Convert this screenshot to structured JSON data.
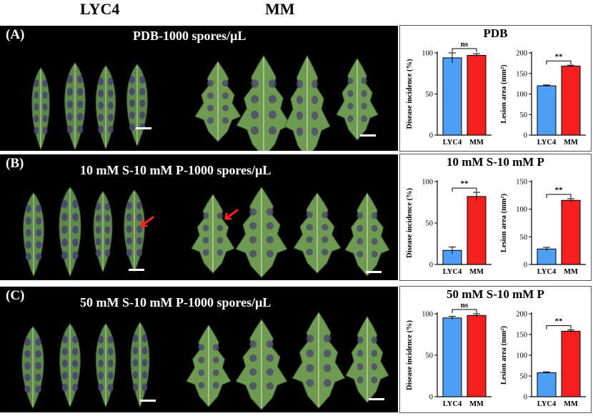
{
  "headers": {
    "left": "LYC4",
    "right": "MM"
  },
  "panels": [
    {
      "label": "(A)",
      "title": "PDB-1000 spores/μL",
      "chart_title": "PDB"
    },
    {
      "label": "(B)",
      "title": "10 mM S-10 mM P-1000 spores/μL",
      "chart_title": "10 mM S-10 mM P"
    },
    {
      "label": "(C)",
      "title": "50 mM S-10 mM P-1000 spores/μL",
      "chart_title": "50 mM S-10 mM P"
    }
  ],
  "colors": {
    "lyc4": "#4d9ff5",
    "mm": "#f41f1f",
    "leaf_lyc4": "#5d8a4a",
    "leaf_mm": "#6f9a52",
    "lesion": "#4a4a6a"
  },
  "chart_data": [
    {
      "type": "bar",
      "panel": "A",
      "categories": [
        "LYC4",
        "MM"
      ],
      "values": [
        94,
        97
      ],
      "errors": [
        6,
        2
      ],
      "ylabel": "Disease incidence (%)",
      "ylim": [
        0,
        100
      ],
      "yticks": [
        0,
        50,
        100
      ],
      "significance": "ns"
    },
    {
      "type": "bar",
      "panel": "A",
      "categories": [
        "LYC4",
        "MM"
      ],
      "values": [
        120,
        168
      ],
      "errors": [
        2,
        2
      ],
      "ylabel": "Lesion area (mm²)",
      "ylim": [
        0,
        200
      ],
      "yticks": [
        0,
        50,
        100,
        150,
        200
      ],
      "significance": "**"
    },
    {
      "type": "bar",
      "panel": "B",
      "categories": [
        "LYC4",
        "MM"
      ],
      "values": [
        17,
        82
      ],
      "errors": [
        4,
        5
      ],
      "ylabel": "Disease incidence (%)",
      "ylim": [
        0,
        100
      ],
      "yticks": [
        0,
        50,
        100
      ],
      "significance": "**"
    },
    {
      "type": "bar",
      "panel": "B",
      "categories": [
        "LYC4",
        "MM"
      ],
      "values": [
        28,
        116
      ],
      "errors": [
        3,
        3
      ],
      "ylabel": "Lesion area (mm²)",
      "ylim": [
        0,
        150
      ],
      "yticks": [
        0,
        50,
        100,
        150
      ],
      "significance": "**"
    },
    {
      "type": "bar",
      "panel": "C",
      "categories": [
        "LYC4",
        "MM"
      ],
      "values": [
        95,
        98
      ],
      "errors": [
        2,
        2
      ],
      "ylabel": "Disease incidence (%)",
      "ylim": [
        0,
        100
      ],
      "yticks": [
        0,
        50,
        100
      ],
      "significance": "ns"
    },
    {
      "type": "bar",
      "panel": "C",
      "categories": [
        "LYC4",
        "MM"
      ],
      "values": [
        58,
        158
      ],
      "errors": [
        2,
        3
      ],
      "ylabel": "Lesion area (mm²)",
      "ylim": [
        0,
        200
      ],
      "yticks": [
        0,
        50,
        100,
        150,
        200
      ],
      "significance": "**"
    }
  ]
}
